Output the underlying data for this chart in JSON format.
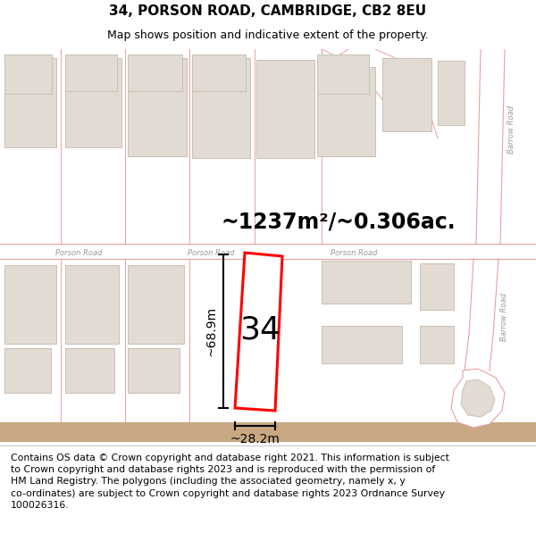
{
  "title": "34, PORSON ROAD, CAMBRIDGE, CB2 8EU",
  "subtitle": "Map shows position and indicative extent of the property.",
  "footer": "Contains OS data © Crown copyright and database right 2021. This information is subject\nto Crown copyright and database rights 2023 and is reproduced with the permission of\nHM Land Registry. The polygons (including the associated geometry, namely x, y\nco-ordinates) are subject to Crown copyright and database rights 2023 Ordnance Survey\n100026316.",
  "area_label": "~1237m²/~0.306ac.",
  "dim_height": "~68.9m",
  "dim_width": "~28.2m",
  "number_label": "34",
  "bg_map_color": "#f2eeea",
  "building_fill": "#e2dbd4",
  "building_stroke": "#c9bfb5",
  "road_fill": "#ffffff",
  "road_line_color": "#e8a0a0",
  "highlight_color": "#ff0000",
  "dim_color": "#000000",
  "road_label_color": "#999999",
  "title_fontsize": 11,
  "subtitle_fontsize": 9,
  "footer_fontsize": 7.8,
  "area_fontsize": 17,
  "number_fontsize": 26,
  "dim_fontsize": 10,
  "road_label_fontsize": 6
}
